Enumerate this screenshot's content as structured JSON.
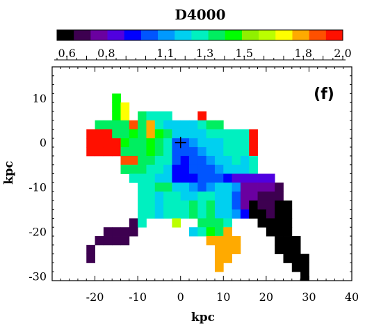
{
  "chart_data": {
    "type": "heatmap",
    "title": "D4000",
    "xlabel": "kpc",
    "ylabel": "kpc",
    "panel_label": "(f)",
    "xlim": [
      -30,
      40
    ],
    "ylim": [
      -31,
      17
    ],
    "xticks": [
      -20,
      -10,
      0,
      10,
      20,
      30,
      40
    ],
    "yticks": [
      10,
      0,
      -10,
      -20,
      -30
    ],
    "xtick_labels": [
      "-20",
      "-10",
      "0",
      "10",
      "20",
      "30",
      "40"
    ],
    "ytick_labels": [
      "10",
      "0",
      "-10",
      "-20",
      "-30"
    ],
    "colorbar": {
      "range": [
        0.55,
        2.0
      ],
      "tick_values": [
        0.6,
        0.8,
        1.1,
        1.3,
        1.5,
        1.8,
        2.0
      ],
      "tick_labels": [
        "0.6",
        "0.8",
        "1.1",
        "1.3",
        "1.5",
        "1.8",
        "2.0"
      ],
      "colors": [
        "#000000",
        "#3d0050",
        "#6a00a0",
        "#5000e0",
        "#0000ff",
        "#0055ff",
        "#0099ff",
        "#00d0f0",
        "#00f0c0",
        "#00ee60",
        "#00ff00",
        "#90f000",
        "#bbff00",
        "#ffff00",
        "#ffaa00",
        "#ff5000",
        "#ff1000"
      ]
    },
    "marker": {
      "x": 0,
      "y": 0,
      "symbol": "+"
    },
    "cell_size_kpc": 2,
    "cell_rows": [
      {
        "y": 10,
        "cells": [
          [
            -15,
            1.45
          ]
        ]
      },
      {
        "y": 8,
        "cells": [
          [
            -15,
            1.45
          ],
          [
            -13,
            1.72
          ]
        ]
      },
      {
        "y": 6,
        "cells": [
          [
            -15,
            1.45
          ],
          [
            -13,
            1.68
          ],
          [
            -9,
            1.4
          ],
          [
            -7,
            1.3
          ],
          [
            -5,
            1.3
          ],
          [
            -3,
            1.3
          ],
          [
            5,
            1.95
          ]
        ]
      },
      {
        "y": 4,
        "cells": [
          [
            -19,
            1.4
          ],
          [
            -17,
            1.4
          ],
          [
            -15,
            1.4
          ],
          [
            -13,
            1.4
          ],
          [
            -11,
            1.9
          ],
          [
            -9,
            1.4
          ],
          [
            -7,
            1.8
          ],
          [
            -5,
            1.3
          ],
          [
            -3,
            1.2
          ],
          [
            -1,
            1.2
          ],
          [
            1,
            1.2
          ],
          [
            3,
            1.2
          ],
          [
            5,
            1.3
          ],
          [
            7,
            1.4
          ],
          [
            9,
            1.4
          ]
        ]
      },
      {
        "y": 2,
        "cells": [
          [
            -21,
            1.95
          ],
          [
            -19,
            1.95
          ],
          [
            -17,
            1.95
          ],
          [
            -15,
            1.4
          ],
          [
            -13,
            1.35
          ],
          [
            -11,
            1.45
          ],
          [
            -9,
            1.4
          ],
          [
            -7,
            1.8
          ],
          [
            -5,
            1.45
          ],
          [
            -3,
            1.35
          ],
          [
            -1,
            1.15
          ],
          [
            1,
            1.2
          ],
          [
            3,
            1.2
          ],
          [
            5,
            1.2
          ],
          [
            7,
            1.25
          ],
          [
            9,
            1.3
          ],
          [
            11,
            1.3
          ],
          [
            13,
            1.3
          ],
          [
            15,
            1.3
          ],
          [
            17,
            1.95
          ]
        ]
      },
      {
        "y": 0,
        "cells": [
          [
            -21,
            1.95
          ],
          [
            -19,
            1.95
          ],
          [
            -17,
            1.95
          ],
          [
            -15,
            1.95
          ],
          [
            -13,
            1.45
          ],
          [
            -11,
            1.4
          ],
          [
            -9,
            1.4
          ],
          [
            -7,
            1.45
          ],
          [
            -5,
            1.4
          ],
          [
            -3,
            1.3
          ],
          [
            -1,
            1.0
          ],
          [
            1,
            1.05
          ],
          [
            3,
            1.1
          ],
          [
            5,
            1.15
          ],
          [
            7,
            1.15
          ],
          [
            9,
            1.2
          ],
          [
            11,
            1.25
          ],
          [
            13,
            1.3
          ],
          [
            15,
            1.3
          ],
          [
            17,
            1.95
          ]
        ]
      },
      {
        "y": -2,
        "cells": [
          [
            -21,
            1.95
          ],
          [
            -19,
            1.95
          ],
          [
            -17,
            1.95
          ],
          [
            -15,
            1.95
          ],
          [
            -13,
            1.4
          ],
          [
            -11,
            1.4
          ],
          [
            -9,
            1.4
          ],
          [
            -7,
            1.45
          ],
          [
            -5,
            1.35
          ],
          [
            -3,
            1.3
          ],
          [
            -1,
            1.0
          ],
          [
            1,
            1.0
          ],
          [
            3,
            1.05
          ],
          [
            5,
            1.1
          ],
          [
            7,
            1.15
          ],
          [
            9,
            1.2
          ],
          [
            11,
            1.25
          ],
          [
            13,
            1.3
          ],
          [
            15,
            1.25
          ],
          [
            17,
            1.95
          ]
        ]
      },
      {
        "y": -4,
        "cells": [
          [
            -13,
            1.85
          ],
          [
            -11,
            1.85
          ],
          [
            -9,
            1.4
          ],
          [
            -7,
            1.4
          ],
          [
            -5,
            1.3
          ],
          [
            -3,
            1.25
          ],
          [
            -1,
            1.0
          ],
          [
            1,
            0.95
          ],
          [
            3,
            1.0
          ],
          [
            5,
            1.05
          ],
          [
            7,
            1.1
          ],
          [
            9,
            1.15
          ],
          [
            11,
            1.2
          ],
          [
            13,
            1.25
          ],
          [
            15,
            1.2
          ],
          [
            17,
            1.3
          ]
        ]
      },
      {
        "y": -6,
        "cells": [
          [
            -13,
            1.4
          ],
          [
            -11,
            1.4
          ],
          [
            -9,
            1.35
          ],
          [
            -7,
            1.3
          ],
          [
            -5,
            1.25
          ],
          [
            -3,
            1.2
          ],
          [
            -1,
            0.95
          ],
          [
            1,
            0.95
          ],
          [
            3,
            1.0
          ],
          [
            5,
            1.0
          ],
          [
            7,
            1.05
          ],
          [
            9,
            1.1
          ],
          [
            11,
            1.15
          ],
          [
            13,
            1.2
          ],
          [
            15,
            1.15
          ],
          [
            17,
            1.25
          ]
        ]
      },
      {
        "y": -8,
        "cells": [
          [
            -11,
            1.3
          ],
          [
            -9,
            1.3
          ],
          [
            -7,
            1.25
          ],
          [
            -5,
            1.2
          ],
          [
            -3,
            1.15
          ],
          [
            -1,
            0.95
          ],
          [
            1,
            0.95
          ],
          [
            3,
            0.95
          ],
          [
            5,
            1.0
          ],
          [
            7,
            1.05
          ],
          [
            9,
            1.05
          ],
          [
            11,
            0.9
          ],
          [
            13,
            0.88
          ],
          [
            15,
            0.88
          ],
          [
            17,
            0.88
          ],
          [
            19,
            0.85
          ],
          [
            21,
            0.85
          ]
        ]
      },
      {
        "y": -10,
        "cells": [
          [
            -9,
            1.3
          ],
          [
            -7,
            1.25
          ],
          [
            -5,
            1.35
          ],
          [
            -3,
            1.4
          ],
          [
            -1,
            1.2
          ],
          [
            1,
            1.15
          ],
          [
            3,
            1.1
          ],
          [
            5,
            1.05
          ],
          [
            7,
            1.1
          ],
          [
            9,
            1.15
          ],
          [
            11,
            1.2
          ],
          [
            13,
            1.1
          ],
          [
            15,
            0.78
          ],
          [
            17,
            0.8
          ],
          [
            19,
            0.78
          ],
          [
            21,
            0.75
          ],
          [
            23,
            0.72
          ]
        ]
      },
      {
        "y": -12,
        "cells": [
          [
            -9,
            1.25
          ],
          [
            -7,
            1.25
          ],
          [
            -5,
            1.2
          ],
          [
            -3,
            1.25
          ],
          [
            -1,
            1.3
          ],
          [
            1,
            1.2
          ],
          [
            3,
            1.2
          ],
          [
            5,
            1.25
          ],
          [
            7,
            1.3
          ],
          [
            9,
            1.2
          ],
          [
            11,
            1.15
          ],
          [
            13,
            1.05
          ],
          [
            15,
            0.75
          ],
          [
            17,
            0.75
          ],
          [
            19,
            0.72
          ],
          [
            21,
            0.72
          ],
          [
            23,
            0.7
          ]
        ]
      },
      {
        "y": -14,
        "cells": [
          [
            -9,
            1.25
          ],
          [
            -7,
            1.25
          ],
          [
            -5,
            1.2
          ],
          [
            -3,
            1.25
          ],
          [
            -1,
            1.3
          ],
          [
            1,
            1.25
          ],
          [
            3,
            1.35
          ],
          [
            5,
            1.25
          ],
          [
            7,
            1.35
          ],
          [
            9,
            1.2
          ],
          [
            11,
            1.15
          ],
          [
            13,
            1.05
          ],
          [
            15,
            0.75
          ],
          [
            17,
            0.6
          ],
          [
            19,
            0.65
          ],
          [
            21,
            0.7
          ],
          [
            23,
            0.62
          ],
          [
            25,
            0.58
          ]
        ]
      },
      {
        "y": -16,
        "cells": [
          [
            -9,
            1.25
          ],
          [
            -7,
            1.25
          ],
          [
            -5,
            1.2
          ],
          [
            -3,
            1.25
          ],
          [
            -1,
            1.3
          ],
          [
            1,
            1.25
          ],
          [
            3,
            1.35
          ],
          [
            5,
            1.25
          ],
          [
            7,
            1.35
          ],
          [
            9,
            1.2
          ],
          [
            11,
            1.15
          ],
          [
            13,
            1.1
          ],
          [
            15,
            0.95
          ],
          [
            17,
            0.6
          ],
          [
            19,
            0.6
          ],
          [
            21,
            0.7
          ],
          [
            23,
            0.58
          ],
          [
            25,
            0.58
          ]
        ]
      },
      {
        "y": -18,
        "cells": [
          [
            -11,
            0.68
          ],
          [
            -9,
            1.25
          ],
          [
            -1,
            1.6
          ],
          [
            5,
            1.35
          ],
          [
            7,
            1.4
          ],
          [
            9,
            1.35
          ],
          [
            11,
            1.3
          ],
          [
            19,
            0.6
          ],
          [
            21,
            0.58
          ],
          [
            23,
            0.55
          ],
          [
            25,
            0.55
          ]
        ]
      },
      {
        "y": -20,
        "cells": [
          [
            -17,
            0.68
          ],
          [
            -15,
            0.68
          ],
          [
            -13,
            0.68
          ],
          [
            -11,
            0.68
          ],
          [
            3,
            1.2
          ],
          [
            5,
            1.3
          ],
          [
            7,
            1.45
          ],
          [
            9,
            1.4
          ],
          [
            11,
            1.8
          ],
          [
            21,
            0.6
          ],
          [
            23,
            0.55
          ],
          [
            25,
            0.55
          ]
        ]
      },
      {
        "y": -22,
        "cells": [
          [
            -19,
            0.68
          ],
          [
            -17,
            0.68
          ],
          [
            -15,
            0.68
          ],
          [
            -13,
            0.68
          ],
          [
            7,
            1.8
          ],
          [
            9,
            1.8
          ],
          [
            11,
            1.8
          ],
          [
            13,
            1.8
          ],
          [
            23,
            0.55
          ],
          [
            25,
            0.55
          ],
          [
            27,
            0.55
          ]
        ]
      },
      {
        "y": -24,
        "cells": [
          [
            -21,
            0.68
          ],
          [
            9,
            1.8
          ],
          [
            11,
            1.8
          ],
          [
            13,
            1.8
          ],
          [
            23,
            0.55
          ],
          [
            25,
            0.55
          ],
          [
            27,
            0.55
          ]
        ]
      },
      {
        "y": -26,
        "cells": [
          [
            -21,
            0.68
          ],
          [
            9,
            1.8
          ],
          [
            11,
            1.8
          ],
          [
            25,
            0.55
          ],
          [
            27,
            0.55
          ],
          [
            29,
            0.55
          ]
        ]
      },
      {
        "y": -28,
        "cells": [
          [
            9,
            1.8
          ],
          [
            27,
            0.55
          ],
          [
            29,
            0.55
          ]
        ]
      },
      {
        "y": -30,
        "cells": [
          [
            29,
            0.55
          ]
        ]
      }
    ]
  }
}
